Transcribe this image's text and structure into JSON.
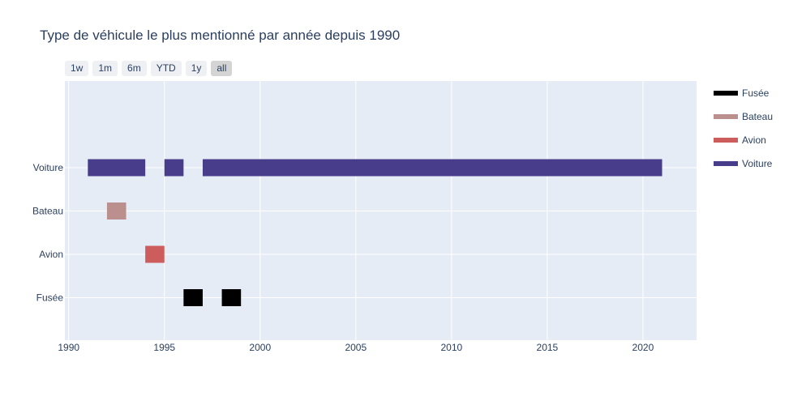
{
  "title": "Type de véhicule le plus mentionné par année depuis 1990",
  "range_buttons": [
    {
      "label": "1w",
      "active": false
    },
    {
      "label": "1m",
      "active": false
    },
    {
      "label": "6m",
      "active": false
    },
    {
      "label": "YTD",
      "active": false
    },
    {
      "label": "1y",
      "active": false
    },
    {
      "label": "all",
      "active": true
    }
  ],
  "legend": [
    {
      "name": "Fusée",
      "color": "#000000"
    },
    {
      "name": "Bateau",
      "color": "#bc8f8f"
    },
    {
      "name": "Avion",
      "color": "#cd5c5c"
    },
    {
      "name": "Voiture",
      "color": "#483d8b"
    }
  ],
  "chart_data": {
    "type": "timeline",
    "title": "Type de véhicule le plus mentionné par année depuis 1990",
    "xlabel": "",
    "ylabel": "",
    "x_ticks": [
      "1990",
      "1995",
      "2000",
      "2005",
      "2010",
      "2015",
      "2020"
    ],
    "xlim": [
      1989.8,
      2022.8
    ],
    "categories": [
      "Voiture",
      "Bateau",
      "Avion",
      "Fusée"
    ],
    "grid": true,
    "legend_position": "right",
    "series": [
      {
        "name": "Voiture",
        "color": "#483d8b",
        "intervals": [
          [
            1991,
            1994
          ],
          [
            1995,
            1996
          ],
          [
            1997,
            2021
          ]
        ]
      },
      {
        "name": "Bateau",
        "color": "#bc8f8f",
        "intervals": [
          [
            1992,
            1993
          ]
        ]
      },
      {
        "name": "Avion",
        "color": "#cd5c5c",
        "intervals": [
          [
            1994,
            1995
          ]
        ]
      },
      {
        "name": "Fusée",
        "color": "#000000",
        "intervals": [
          [
            1996,
            1997
          ],
          [
            1998,
            1999
          ]
        ]
      }
    ]
  }
}
